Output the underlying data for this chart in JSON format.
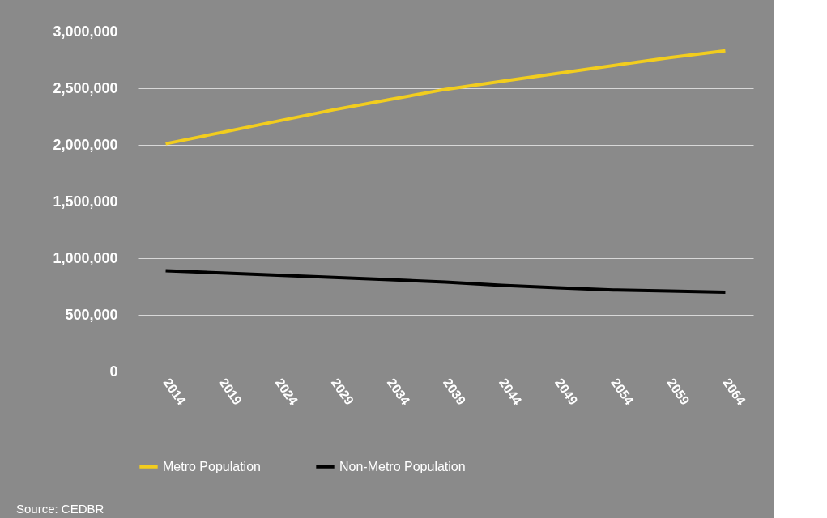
{
  "chart_data": {
    "type": "line",
    "categories": [
      "2014",
      "2019",
      "2024",
      "2029",
      "2034",
      "2039",
      "2044",
      "2049",
      "2054",
      "2059",
      "2064"
    ],
    "series": [
      {
        "name": "Metro Population",
        "color": "#f2cd1e",
        "values": [
          2010000,
          2110000,
          2210000,
          2310000,
          2400000,
          2490000,
          2560000,
          2630000,
          2700000,
          2770000,
          2830000
        ]
      },
      {
        "name": "Non-Metro Population",
        "color": "#000000",
        "values": [
          890000,
          870000,
          850000,
          830000,
          810000,
          790000,
          760000,
          740000,
          720000,
          710000,
          700000
        ]
      }
    ],
    "ylim": [
      0,
      3000000
    ],
    "yticks": [
      0,
      {
        "value": 500000,
        "label": "500,000"
      },
      {
        "value": 1000000,
        "label": "1,000,000"
      },
      {
        "value": 1500000,
        "label": "1,500,000"
      },
      {
        "value": 2000000,
        "label": "2,000,000"
      },
      {
        "value": 2500000,
        "label": "2,500,000"
      },
      {
        "value": 3000000,
        "label": "3,000,000"
      }
    ],
    "grid": "y",
    "legend": "bottom",
    "marker": "none",
    "line_style": "solid",
    "annotations": [
      "Source: CEDBR"
    ]
  }
}
